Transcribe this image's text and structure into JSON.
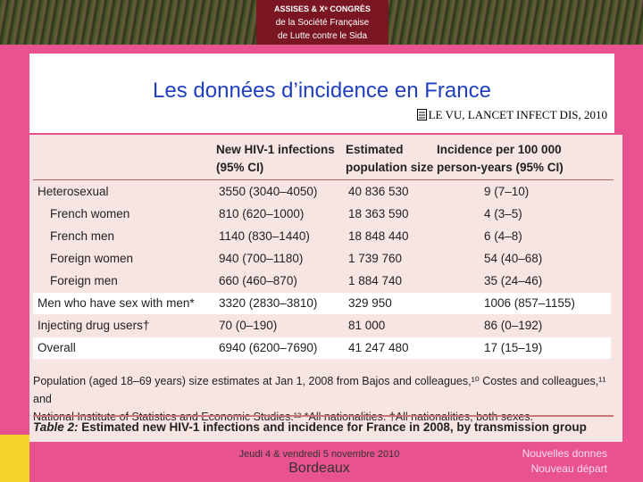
{
  "banner": {
    "lines": [
      "ASSISES & Xᵉ CONGRÈS",
      "de la Société Française",
      "de Lutte contre le Sida"
    ]
  },
  "title": "Les données d’incidence en France",
  "source": "LE VU, LANCET INFECT DIS, 2010",
  "table": {
    "columns": [
      [
        "New HIV-1 infections",
        "(95% CI)"
      ],
      [
        "Estimated",
        "population size"
      ],
      [
        "Incidence per 100 000",
        "person-years (95% CI)"
      ]
    ],
    "rows": [
      [
        "Heterosexual",
        "3550 (3040–4050)",
        "40 836 530",
        "9 (7–10)"
      ],
      [
        "French women",
        "810 (620–1000)",
        "18 363 590",
        "4 (3–5)"
      ],
      [
        "French men",
        "1140 (830–1440)",
        "18 848 440",
        "6 (4–8)"
      ],
      [
        "Foreign women",
        "940 (700–1180)",
        "1 739 760",
        "54 (40–68)"
      ],
      [
        "Foreign men",
        "660 (460–870)",
        "1 884 740",
        "35 (24–46)"
      ],
      [
        "Men who have sex with men*",
        "3320 (2830–3810)",
        "329 950",
        "1006 (857–1155)"
      ],
      [
        "Injecting drug users†",
        "70 (0–190)",
        "81 000",
        "86 (0–192)"
      ],
      [
        "Overall",
        "6940 (6200–7690)",
        "41 247 480",
        "17 (15–19)"
      ]
    ],
    "footnote": [
      "Population (aged 18–69 years) size estimates at Jan 1, 2008 from Bajos and colleagues,¹⁰ Costes and colleagues,¹¹ and",
      "National Institute of Statistics and Economic Studies.¹² *All nationalities. †All nationalities, both sexes."
    ],
    "caption_label": "Table 2:",
    "caption": "Estimated new HIV-1 infections and incidence for France in 2008, by transmission group"
  },
  "footer": {
    "date": "Jeudi 4 & vendredi 5 novembre 2010",
    "city": "Bordeaux",
    "tagline": [
      "Nouvelles donnes",
      "Nouveau départ"
    ]
  }
}
